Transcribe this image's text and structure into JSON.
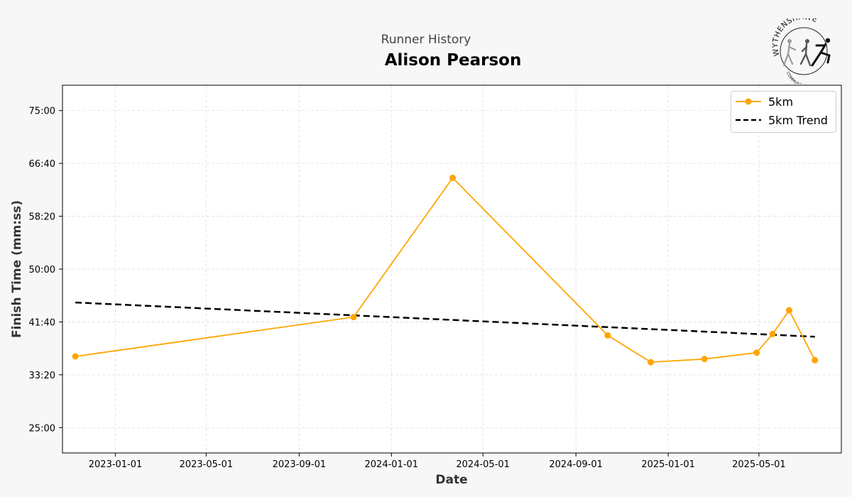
{
  "header": {
    "suptitle": "Runner History",
    "title": "Alison Pearson"
  },
  "logo": {
    "text_top": "WYTHENSHAWE",
    "text_bottom": "COMMUNITY RUN"
  },
  "colors": {
    "series": "#ffa500",
    "trend": "#000000",
    "grid": "#dddddd",
    "background": "#f7f7f7",
    "plot_background": "#ffffff"
  },
  "chart_data": {
    "type": "line",
    "xlabel": "Date",
    "ylabel": "Finish Time (mm:ss)",
    "x_tick_labels": [
      "2023-01-01",
      "2023-05-01",
      "2023-09-01",
      "2024-01-01",
      "2024-05-01",
      "2024-09-01",
      "2025-01-01",
      "2025-05-01"
    ],
    "y_tick_labels": [
      "25:00",
      "33:20",
      "41:40",
      "50:00",
      "58:20",
      "66:40",
      "75:00"
    ],
    "xlim": [
      "2022-10-23",
      "2025-08-18"
    ],
    "ylim": [
      "21:00",
      "79:00"
    ],
    "grid": true,
    "grid_style": "dashed",
    "legend_position": "top-right",
    "series": [
      {
        "name": "5km",
        "style": "solid line with circle markers",
        "points": [
          {
            "date": "2022-11-09",
            "time": "36:14"
          },
          {
            "date": "2023-11-12",
            "time": "42:26"
          },
          {
            "date": "2024-03-22",
            "time": "64:23"
          },
          {
            "date": "2024-10-13",
            "time": "39:33"
          },
          {
            "date": "2024-12-09",
            "time": "35:19"
          },
          {
            "date": "2025-02-18",
            "time": "35:49"
          },
          {
            "date": "2025-04-28",
            "time": "36:49"
          },
          {
            "date": "2025-05-19",
            "time": "39:46"
          },
          {
            "date": "2025-06-10",
            "time": "43:30"
          },
          {
            "date": "2025-07-14",
            "time": "35:38"
          }
        ]
      },
      {
        "name": "5km Trend",
        "style": "dashed line",
        "points": [
          {
            "date": "2022-11-09",
            "time": "44:44"
          },
          {
            "date": "2025-07-14",
            "time": "39:20"
          }
        ]
      }
    ]
  }
}
